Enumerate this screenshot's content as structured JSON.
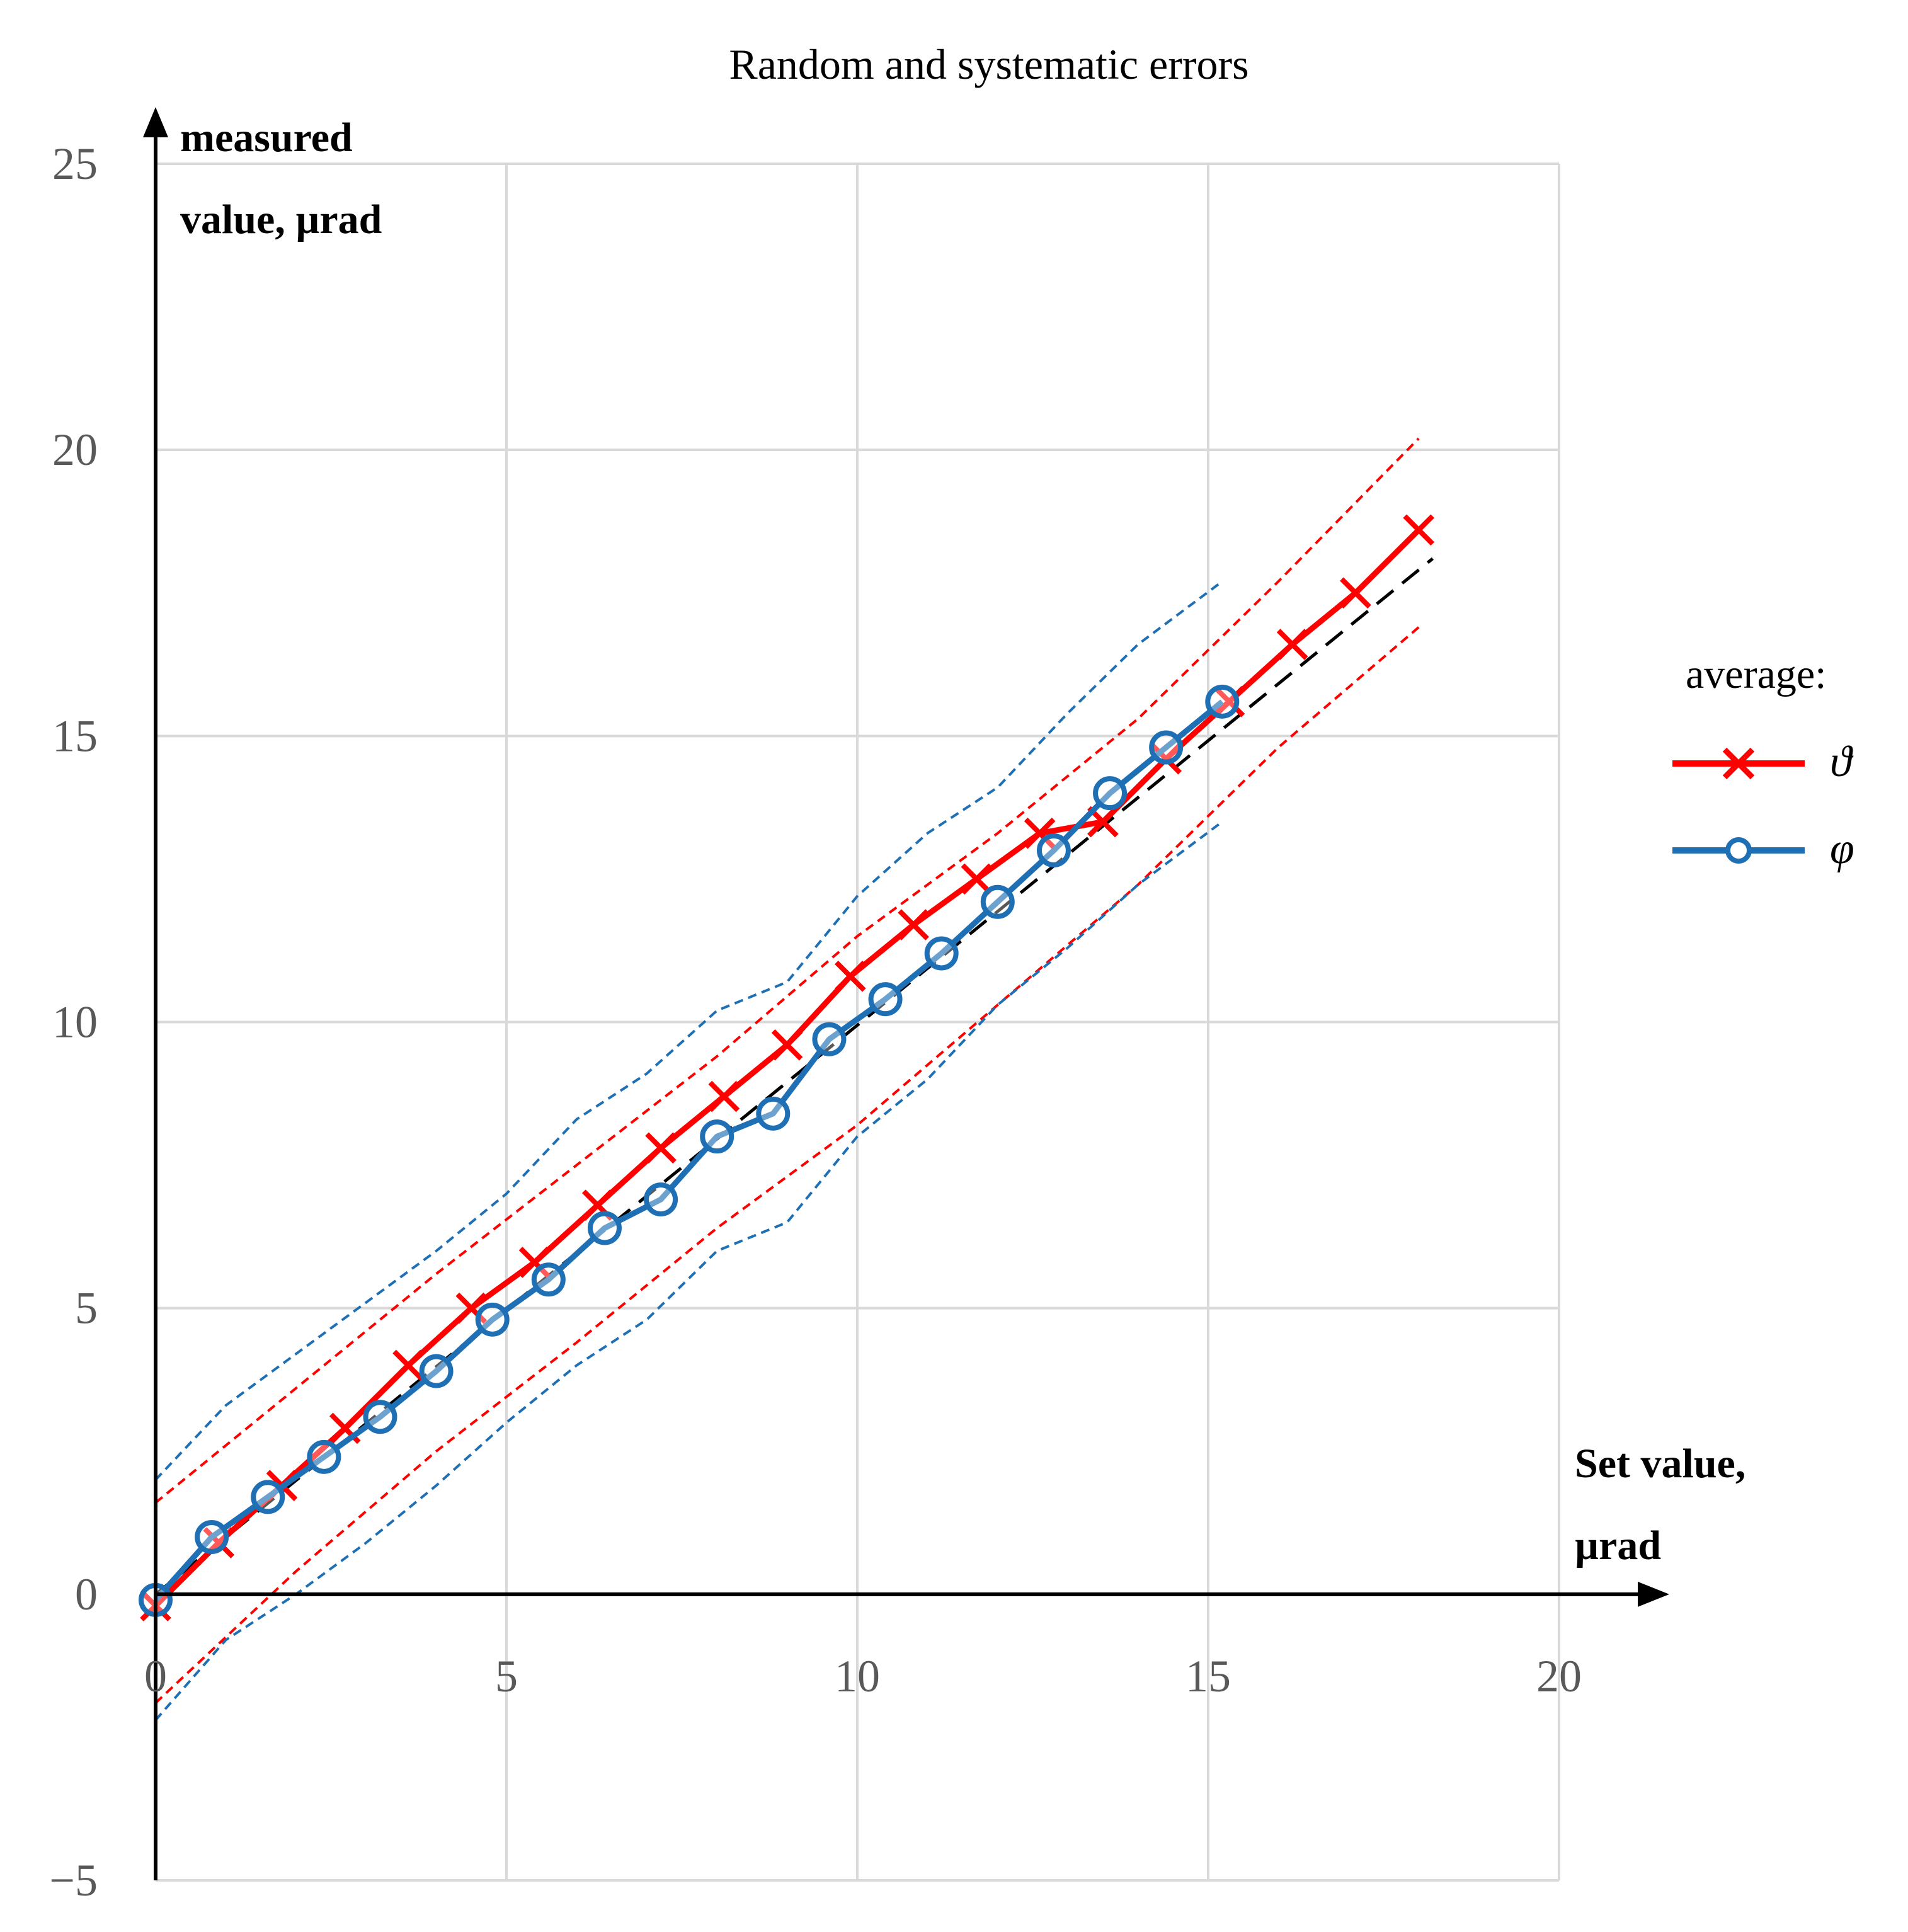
{
  "chart_data": {
    "type": "line",
    "title": "Random and systematic errors",
    "ylabel_line1": "measured",
    "ylabel_line2": "value, µrad",
    "xlabel_line1": "Set value,",
    "xlabel_line2": "µrad",
    "xlim": [
      0,
      20
    ],
    "ylim": [
      -5,
      25
    ],
    "xticks": [
      "0",
      "5",
      "10",
      "15",
      "20"
    ],
    "yticks": [
      "−5",
      "0",
      "5",
      "10",
      "15",
      "20",
      "25"
    ],
    "grid": true,
    "legend_title": "average:",
    "legend_position": "right",
    "colors": {
      "theta": "#ff0000",
      "phi": "#1f6fb4",
      "ideal": "#000000",
      "grid": "#d9d9d9"
    },
    "series": [
      {
        "name": "ϑ",
        "color": "#ff0000",
        "marker": "x",
        "x": [
          0,
          0.9,
          1.8,
          2.7,
          3.6,
          4.5,
          5.4,
          6.3,
          7.2,
          8.1,
          9.0,
          9.9,
          10.8,
          11.7,
          12.6,
          13.5,
          14.4,
          15.3,
          16.2,
          17.1,
          18.0
        ],
        "y": [
          -0.2,
          0.9,
          1.9,
          2.9,
          4.0,
          5.0,
          5.8,
          6.8,
          7.8,
          8.7,
          9.6,
          10.8,
          11.7,
          12.5,
          13.3,
          13.5,
          14.6,
          15.6,
          16.6,
          17.5,
          18.6
        ]
      },
      {
        "name": "φ",
        "color": "#1f6fb4",
        "marker": "o",
        "x": [
          0,
          0.8,
          1.6,
          2.4,
          3.2,
          4.0,
          4.8,
          5.6,
          6.4,
          7.2,
          8.0,
          8.8,
          9.6,
          10.4,
          11.2,
          12.0,
          12.8,
          13.6,
          14.4,
          15.2
        ],
        "y": [
          -0.1,
          1.0,
          1.7,
          2.4,
          3.1,
          3.9,
          4.8,
          5.5,
          6.4,
          6.9,
          8.0,
          8.4,
          9.7,
          10.4,
          11.2,
          12.1,
          13.0,
          14.0,
          14.8,
          15.6
        ]
      }
    ],
    "ideal_line": {
      "x": [
        0,
        18.2
      ],
      "y": [
        0,
        18.1
      ],
      "style": "dashed",
      "color": "#000000"
    },
    "confidence_bands": [
      {
        "series": "ϑ",
        "color": "#ff0000",
        "upper": {
          "x": [
            0,
            2,
            4,
            6,
            8,
            10,
            12,
            14,
            16,
            18
          ],
          "y": [
            1.6,
            3.6,
            5.6,
            7.5,
            9.4,
            11.5,
            13.3,
            15.3,
            17.7,
            20.2
          ]
        },
        "lower": {
          "x": [
            0,
            2,
            4,
            6,
            8,
            10,
            12,
            14,
            16,
            18
          ],
          "y": [
            -1.9,
            0.4,
            2.5,
            4.4,
            6.4,
            8.2,
            10.3,
            12.4,
            14.8,
            16.9
          ]
        }
      },
      {
        "series": "φ",
        "color": "#1f6fb4",
        "upper": {
          "x": [
            0,
            1,
            2,
            3,
            4,
            5,
            6,
            7,
            8,
            9,
            10,
            11,
            12,
            13,
            14,
            15.2
          ],
          "y": [
            2.0,
            3.3,
            4.2,
            5.1,
            6.0,
            7.0,
            8.3,
            9.1,
            10.2,
            10.7,
            12.2,
            13.3,
            14.1,
            15.4,
            16.6,
            17.7
          ]
        },
        "lower": {
          "x": [
            0,
            1,
            2,
            3,
            4,
            5,
            6,
            7,
            8,
            9,
            10,
            11,
            12,
            13,
            14,
            15.2
          ],
          "y": [
            -2.2,
            -0.8,
            0.0,
            0.9,
            1.9,
            3.0,
            4.0,
            4.8,
            6.0,
            6.5,
            8.0,
            9.0,
            10.3,
            11.3,
            12.4,
            13.5
          ]
        }
      }
    ]
  }
}
